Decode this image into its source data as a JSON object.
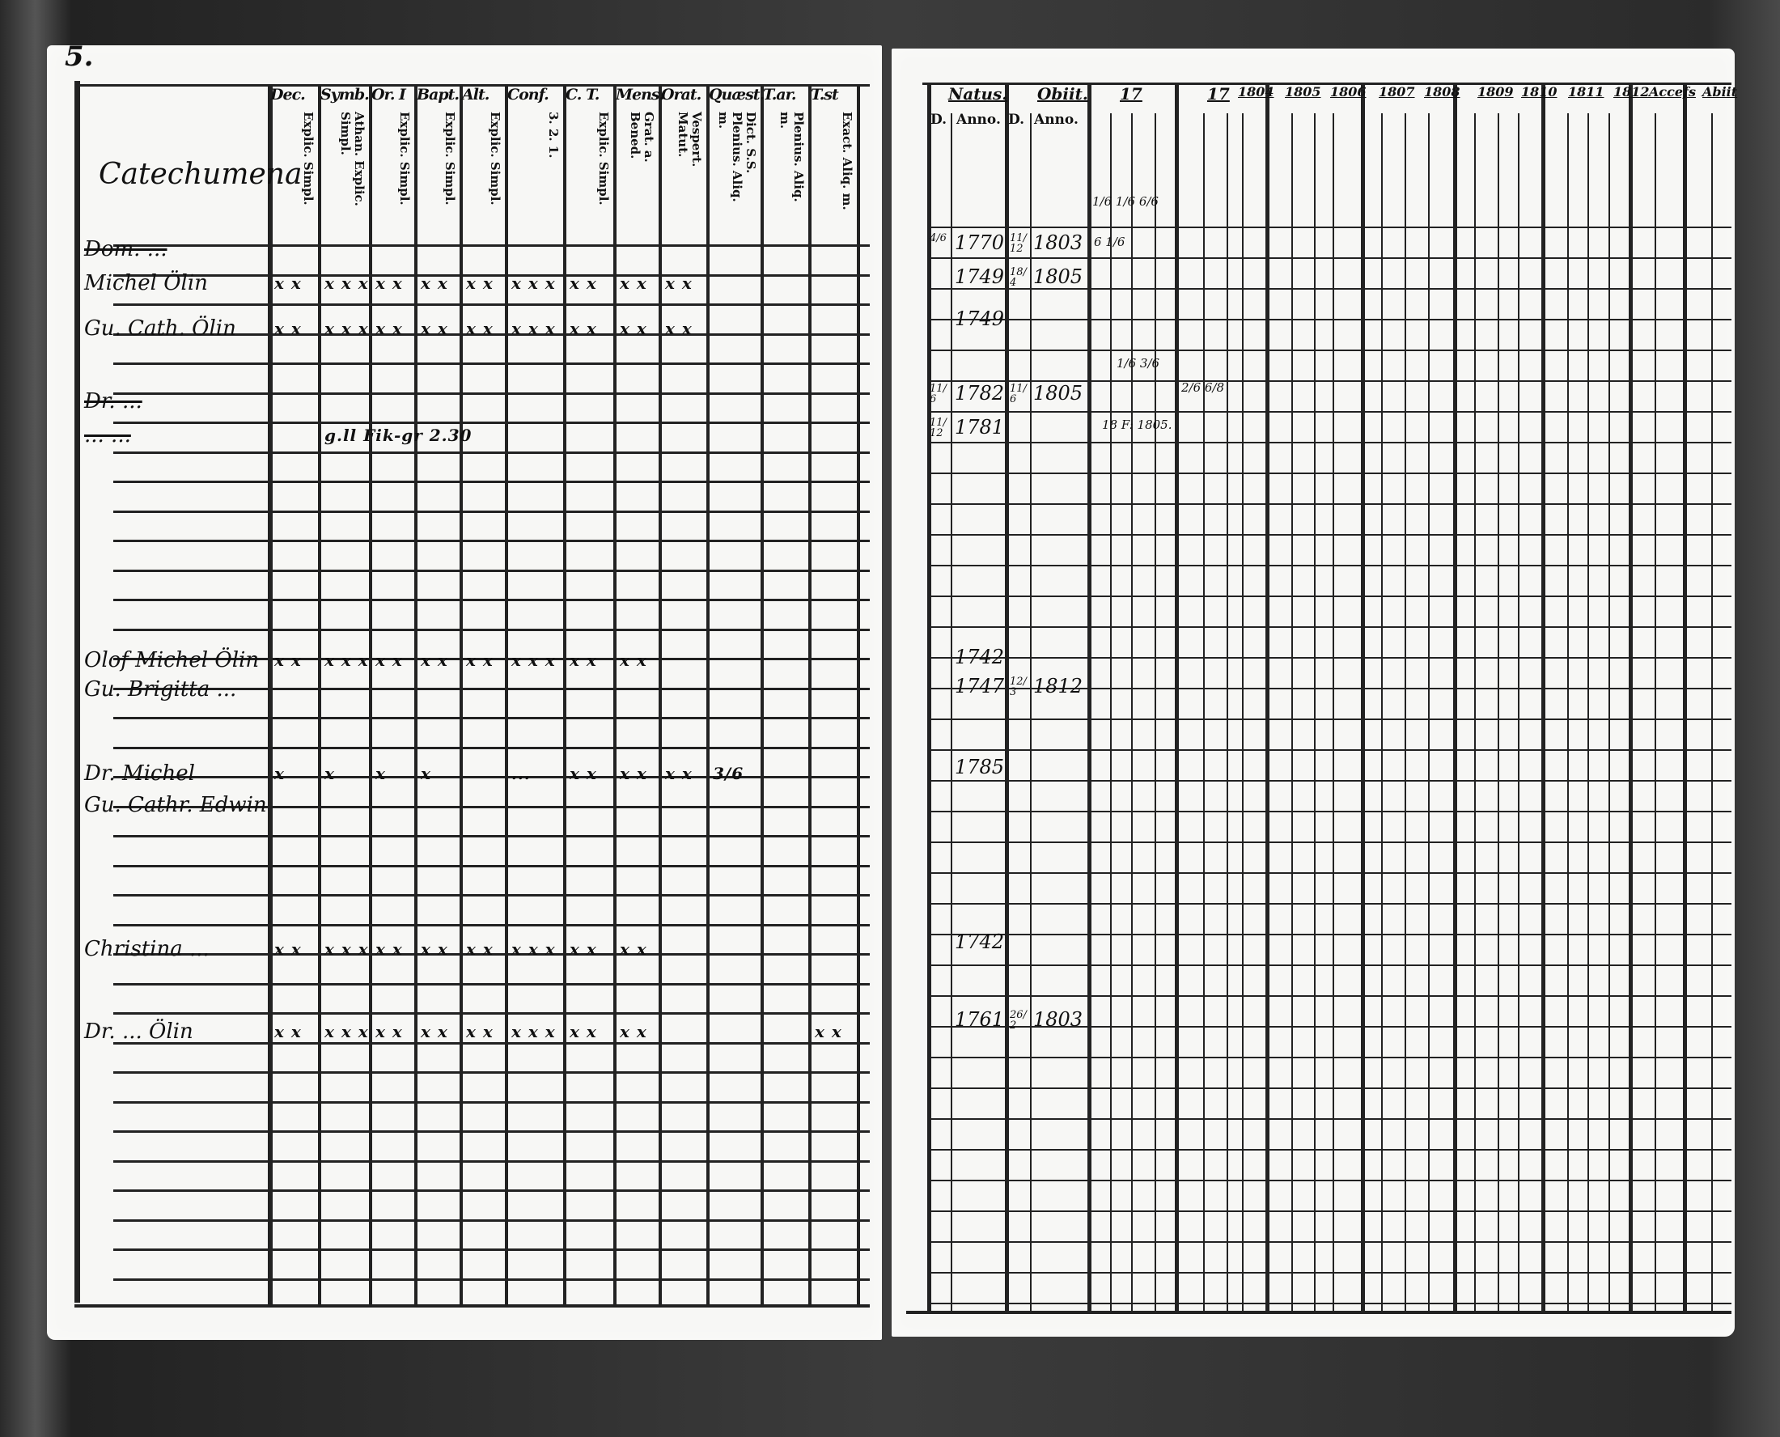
{
  "left_page": {
    "page_number": "5.",
    "section_label": "Catechumena",
    "columns": [
      {
        "head": "Dec.",
        "sub": "Explic. Simpl."
      },
      {
        "head": "Symb.",
        "sub": "Athan. Explic. Simpl."
      },
      {
        "head": "Or. I",
        "sub": "Explic. Simpl."
      },
      {
        "head": "Bapt.",
        "sub": "Explic. Simpl."
      },
      {
        "head": "Alt.",
        "sub": "Explic. Simpl."
      },
      {
        "head": "Conf.",
        "sub": "3. 2. 1."
      },
      {
        "head": "C. T.",
        "sub": "Explic. Simpl."
      },
      {
        "head": "Mens.",
        "sub": "Grat. a. Bened."
      },
      {
        "head": "Orat.",
        "sub": "Vespert. Matut."
      },
      {
        "head": "Quæst.",
        "sub": "Dict. S.S. Plenius. Aliq. m."
      },
      {
        "head": "T.ar.",
        "sub": "Plenius. Aliq. m."
      },
      {
        "head": "T.st",
        "sub": "Exact. Aliq. m."
      }
    ],
    "rows": [
      {
        "name": "Dom. ...",
        "struck": true,
        "marks": []
      },
      {
        "name": "Michel Ölin",
        "struck": false,
        "marks": [
          "x x",
          "x x x",
          "x x",
          "x x",
          "x x",
          "x x x",
          "x x",
          "x x",
          "x x"
        ]
      },
      {
        "name": "Gu. Cath. Ölin",
        "struck": false,
        "marks": [
          "x x",
          "x x x",
          "x x",
          "x x",
          "x x",
          "x x x",
          "x x",
          "x x",
          "x x"
        ]
      },
      {
        "name": "Dr. ...",
        "struck": true,
        "marks": []
      },
      {
        "name": "... ...",
        "struck": true,
        "marks": [
          "",
          "g.ll Fik-gr 2.30"
        ]
      },
      {
        "name": "Olof Michel Ölin",
        "struck": false,
        "marks": [
          "x x",
          "x x x",
          "x x",
          "x x",
          "x x",
          "x x x",
          "x x",
          "x x"
        ]
      },
      {
        "name": "Gu. Brigitta ...",
        "struck": false,
        "marks": []
      },
      {
        "name": "Dr. Michel",
        "struck": false,
        "marks": [
          "x",
          "x",
          "x",
          "x",
          "",
          "...",
          "x x",
          "x x",
          "x x",
          "3/6"
        ]
      },
      {
        "name": "Gu. Cathr. Edwin",
        "struck": false,
        "marks": []
      },
      {
        "name": "Christina ...",
        "struck": false,
        "marks": [
          "x x",
          "x x x",
          "x x",
          "x x",
          "x x",
          "x x x",
          "x x",
          "x x"
        ]
      },
      {
        "name": "Dr. ... Ölin",
        "struck": false,
        "marks": [
          "x x",
          "x x x",
          "x x",
          "x x",
          "x x",
          "x x x",
          "x x",
          "x x",
          "",
          "",
          "",
          "x x"
        ]
      }
    ]
  },
  "right_page": {
    "headers": [
      "Natus.",
      "Obiit.",
      "17",
      "17",
      "1804",
      "1805",
      "1806",
      "1807",
      "1808",
      "1809",
      "1810",
      "1811",
      "1812",
      "Accefs",
      "Abiit"
    ],
    "subheaders": [
      "D.",
      "Anno.",
      "D.",
      "Anno."
    ],
    "rows": [
      {
        "born_day": "4/6",
        "born": "1770",
        "died_day": "11/12",
        "died": "1803"
      },
      {
        "born_day": "",
        "born": "1749",
        "died_day": "18/4",
        "died": "1805"
      },
      {
        "born_day": "",
        "born": "1749",
        "died_day": "",
        "died": ""
      },
      {
        "born_day": "11/6",
        "born": "1782",
        "died_day": "11/6",
        "died": "1805"
      },
      {
        "born_day": "11/12",
        "born": "1781",
        "died_day": "",
        "died": ""
      },
      {
        "born_day": "",
        "born": "1742",
        "died_day": "",
        "died": ""
      },
      {
        "born_day": "",
        "born": "1747",
        "died_day": "12/3",
        "died": "1812"
      },
      {
        "born_day": "",
        "born": "1785",
        "died_day": "",
        "died": ""
      },
      {
        "born_day": "",
        "born": "1742",
        "died_day": "",
        "died": ""
      },
      {
        "born_day": "",
        "born": "1761",
        "died_day": "26/2",
        "died": "1803"
      }
    ],
    "notes": [
      "1/6 1/6 6/6",
      "6 1/6",
      "1/6 3/6",
      "2/6 6/8",
      "18 F: 1805."
    ]
  },
  "colors": {
    "ink": "#111111",
    "paper": "#f7f7f5",
    "background": "#333333"
  }
}
